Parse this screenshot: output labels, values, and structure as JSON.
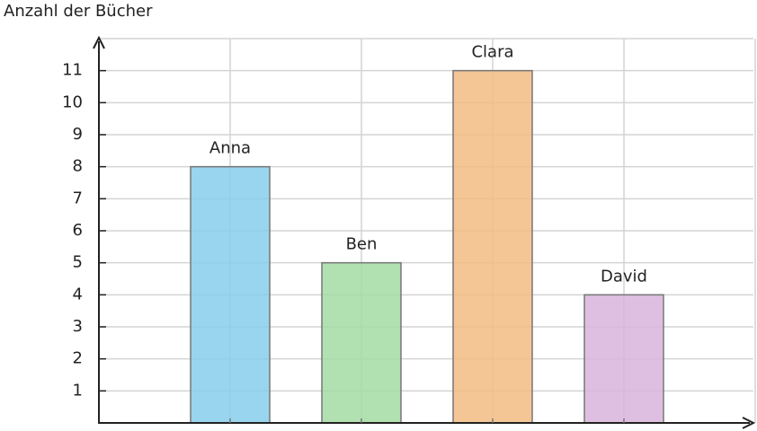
{
  "chart_data": {
    "type": "bar",
    "y_label": "Anzahl der Bücher",
    "categories": [
      "Anna",
      "Ben",
      "Clara",
      "David"
    ],
    "values": [
      8,
      5,
      11,
      4
    ],
    "colors": [
      "#87ceeb",
      "#a3dba3",
      "#f2bc82",
      "#d8b4dc"
    ],
    "ylim": [
      0,
      12
    ],
    "yticks": [
      1,
      2,
      3,
      4,
      5,
      6,
      7,
      8,
      9,
      10,
      11
    ],
    "grid": true
  }
}
